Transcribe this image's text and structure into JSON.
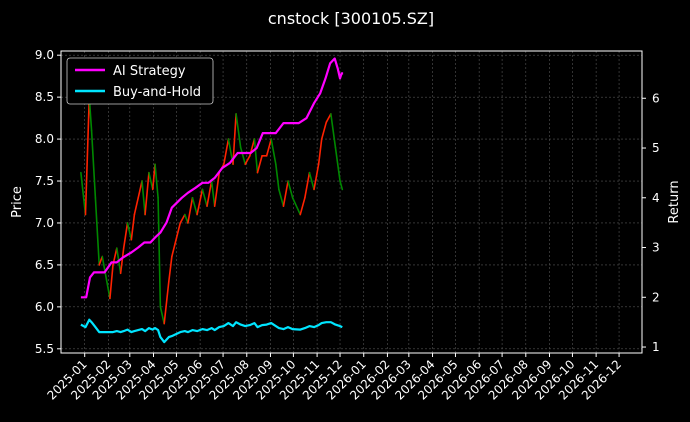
{
  "chart_data": {
    "type": "line",
    "title": "cnstock [300105.SZ]",
    "ylabel": "Price",
    "y2label": "Return",
    "ylim": [
      5.45,
      9.05
    ],
    "y2lim": [
      0.88,
      6.95
    ],
    "x_months": [
      "2025-01",
      "2025-02",
      "2025-03",
      "2025-04",
      "2025-05",
      "2025-06",
      "2025-07",
      "2025-08",
      "2025-09",
      "2025-10",
      "2025-11",
      "2025-12",
      "2026-01",
      "2026-02",
      "2026-03",
      "2026-04",
      "2026-05",
      "2026-06",
      "2026-07",
      "2026-08",
      "2026-09",
      "2026-10",
      "2026-11",
      "2026-12"
    ],
    "y_ticks": [
      5.5,
      6.0,
      6.5,
      7.0,
      7.5,
      8.0,
      8.5,
      9.0
    ],
    "y2_ticks": [
      1,
      2,
      3,
      4,
      5,
      6
    ],
    "grid": true,
    "legend_position": "top-left",
    "colors": {
      "up": "#ff2200",
      "down": "#008800",
      "ai": "#ff00ff",
      "bh": "#00e5ff",
      "grid": "#555555"
    },
    "price_series": {
      "name": "Price",
      "x": [
        "2024-12-27",
        "2025-01-02",
        "2025-01-07",
        "2025-01-10",
        "2025-01-15",
        "2025-01-20",
        "2025-01-24",
        "2025-02-03",
        "2025-02-07",
        "2025-02-12",
        "2025-02-17",
        "2025-02-21",
        "2025-02-26",
        "2025-03-03",
        "2025-03-07",
        "2025-03-12",
        "2025-03-17",
        "2025-03-21",
        "2025-03-26",
        "2025-03-31",
        "2025-04-03",
        "2025-04-07",
        "2025-04-10",
        "2025-04-15",
        "2025-04-21",
        "2025-04-25",
        "2025-05-06",
        "2025-05-12",
        "2025-05-16",
        "2025-05-22",
        "2025-05-28",
        "2025-06-04",
        "2025-06-10",
        "2025-06-16",
        "2025-06-20",
        "2025-06-26",
        "2025-07-02",
        "2025-07-08",
        "2025-07-14",
        "2025-07-18",
        "2025-07-24",
        "2025-07-30",
        "2025-08-05",
        "2025-08-11",
        "2025-08-15",
        "2025-08-21",
        "2025-08-27",
        "2025-09-02",
        "2025-09-08",
        "2025-09-12",
        "2025-09-18",
        "2025-09-24",
        "2025-09-30",
        "2025-10-10",
        "2025-10-16",
        "2025-10-22",
        "2025-10-28",
        "2025-11-03",
        "2025-11-07",
        "2025-11-13",
        "2025-11-19",
        "2025-11-25",
        "2025-12-01",
        "2025-12-04"
      ],
      "values": [
        7.6,
        7.1,
        8.5,
        8.1,
        7.3,
        6.5,
        6.6,
        6.1,
        6.5,
        6.7,
        6.4,
        6.7,
        7.0,
        6.8,
        7.1,
        7.3,
        7.5,
        7.1,
        7.6,
        7.4,
        7.7,
        7.3,
        6.0,
        5.8,
        6.3,
        6.6,
        7.0,
        7.1,
        7.0,
        7.3,
        7.1,
        7.4,
        7.2,
        7.5,
        7.2,
        7.6,
        7.7,
        8.0,
        7.7,
        8.3,
        7.9,
        7.7,
        7.8,
        8.0,
        7.6,
        7.8,
        7.8,
        8.0,
        7.7,
        7.4,
        7.2,
        7.5,
        7.3,
        7.1,
        7.3,
        7.6,
        7.4,
        7.7,
        8.0,
        8.2,
        8.3,
        7.9,
        7.5,
        7.4
      ]
    },
    "series": [
      {
        "name": "AI Strategy",
        "x": [
          "2024-12-27",
          "2025-01-03",
          "2025-01-08",
          "2025-01-13",
          "2025-01-20",
          "2025-01-27",
          "2025-02-05",
          "2025-02-12",
          "2025-02-20",
          "2025-03-03",
          "2025-03-12",
          "2025-03-20",
          "2025-03-28",
          "2025-04-03",
          "2025-04-10",
          "2025-04-18",
          "2025-04-25",
          "2025-05-08",
          "2025-05-16",
          "2025-05-26",
          "2025-06-04",
          "2025-06-12",
          "2025-06-20",
          "2025-06-30",
          "2025-07-10",
          "2025-07-20",
          "2025-07-30",
          "2025-08-06",
          "2025-08-14",
          "2025-08-22",
          "2025-08-30",
          "2025-09-08",
          "2025-09-18",
          "2025-09-28",
          "2025-10-08",
          "2025-10-18",
          "2025-10-28",
          "2025-11-05",
          "2025-11-12",
          "2025-11-18",
          "2025-11-24",
          "2025-11-28",
          "2025-12-01",
          "2025-12-03",
          "2025-12-05"
        ],
        "values": [
          2.0,
          2.0,
          2.4,
          2.5,
          2.5,
          2.5,
          2.7,
          2.7,
          2.8,
          2.9,
          3.0,
          3.1,
          3.1,
          3.2,
          3.3,
          3.5,
          3.8,
          4.0,
          4.1,
          4.2,
          4.3,
          4.3,
          4.4,
          4.6,
          4.7,
          4.9,
          4.9,
          4.9,
          5.0,
          5.3,
          5.3,
          5.3,
          5.5,
          5.5,
          5.5,
          5.6,
          5.9,
          6.1,
          6.4,
          6.7,
          6.8,
          6.6,
          6.4,
          6.5,
          6.5
        ]
      },
      {
        "name": "Buy-and-Hold",
        "x": [
          "2024-12-27",
          "2025-01-02",
          "2025-01-07",
          "2025-01-10",
          "2025-01-15",
          "2025-01-20",
          "2025-01-24",
          "2025-02-03",
          "2025-02-07",
          "2025-02-12",
          "2025-02-17",
          "2025-02-21",
          "2025-02-26",
          "2025-03-03",
          "2025-03-07",
          "2025-03-12",
          "2025-03-17",
          "2025-03-21",
          "2025-03-26",
          "2025-03-31",
          "2025-04-03",
          "2025-04-07",
          "2025-04-10",
          "2025-04-15",
          "2025-04-21",
          "2025-04-25",
          "2025-05-06",
          "2025-05-12",
          "2025-05-16",
          "2025-05-22",
          "2025-05-28",
          "2025-06-04",
          "2025-06-10",
          "2025-06-16",
          "2025-06-20",
          "2025-06-26",
          "2025-07-02",
          "2025-07-08",
          "2025-07-14",
          "2025-07-18",
          "2025-07-24",
          "2025-07-30",
          "2025-08-05",
          "2025-08-11",
          "2025-08-15",
          "2025-08-21",
          "2025-08-27",
          "2025-09-02",
          "2025-09-08",
          "2025-09-12",
          "2025-09-18",
          "2025-09-24",
          "2025-09-30",
          "2025-10-10",
          "2025-10-16",
          "2025-10-22",
          "2025-10-28",
          "2025-11-03",
          "2025-11-07",
          "2025-11-13",
          "2025-11-19",
          "2025-11-25",
          "2025-12-01",
          "2025-12-04"
        ],
        "values": [
          1.45,
          1.4,
          1.55,
          1.5,
          1.4,
          1.3,
          1.3,
          1.3,
          1.3,
          1.32,
          1.3,
          1.32,
          1.35,
          1.3,
          1.32,
          1.34,
          1.36,
          1.32,
          1.38,
          1.35,
          1.38,
          1.34,
          1.2,
          1.1,
          1.2,
          1.22,
          1.3,
          1.32,
          1.3,
          1.34,
          1.32,
          1.36,
          1.34,
          1.38,
          1.34,
          1.4,
          1.42,
          1.48,
          1.42,
          1.5,
          1.45,
          1.42,
          1.44,
          1.48,
          1.4,
          1.44,
          1.45,
          1.48,
          1.42,
          1.38,
          1.36,
          1.4,
          1.36,
          1.35,
          1.38,
          1.42,
          1.4,
          1.44,
          1.48,
          1.5,
          1.5,
          1.45,
          1.42,
          1.4
        ]
      }
    ]
  }
}
